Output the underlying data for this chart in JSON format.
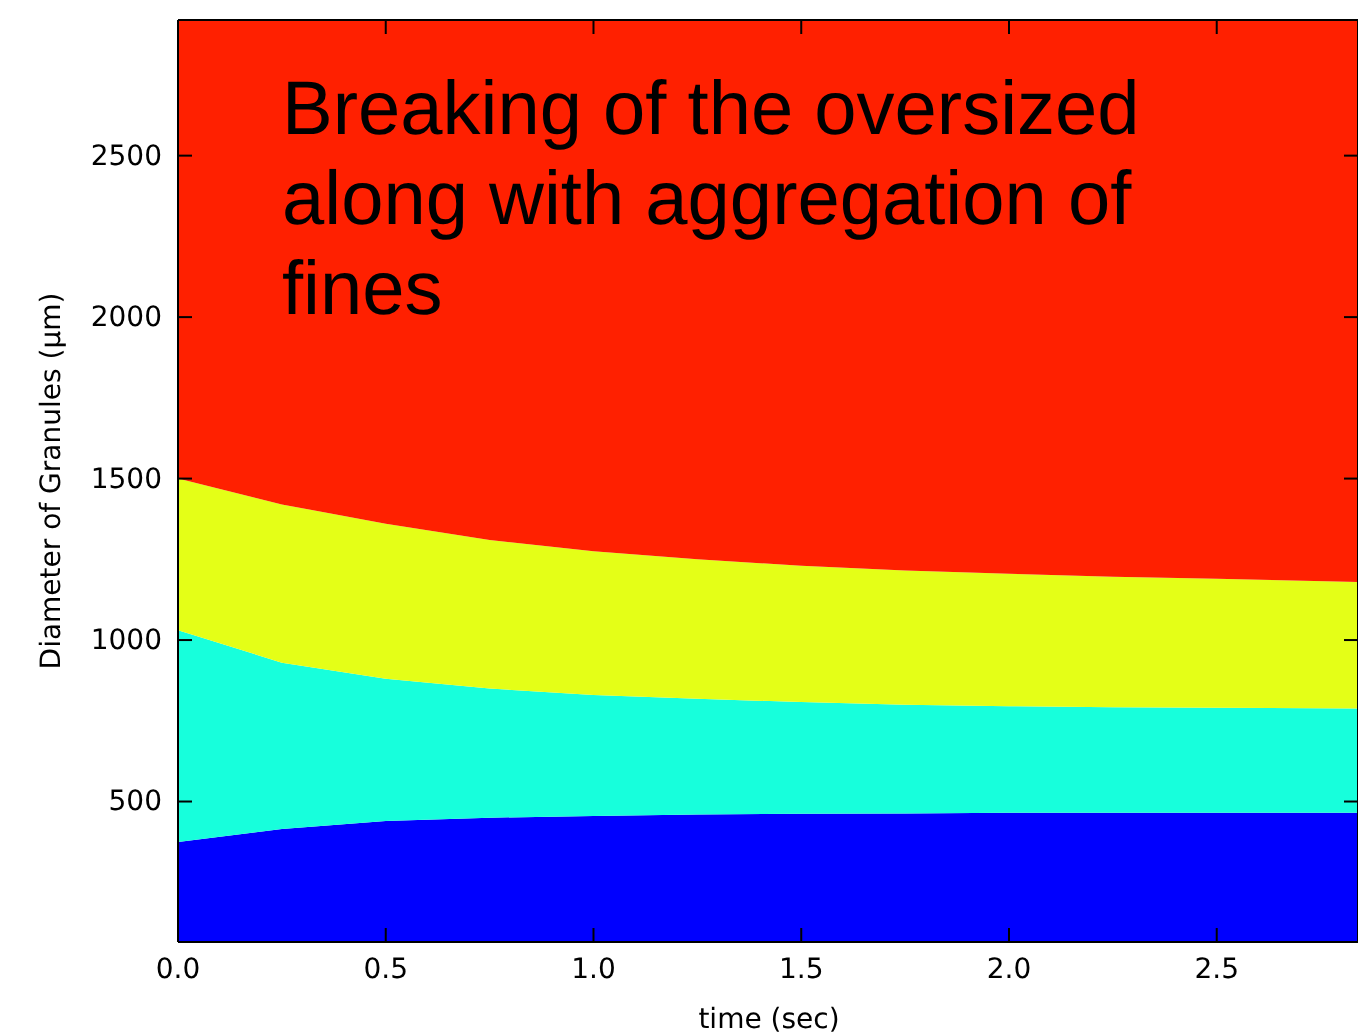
{
  "chart_data": {
    "type": "area",
    "xlabel": "time (sec)",
    "ylabel": "Diameter of Granules (μm)",
    "annotations": [
      "Breaking of the oversized along with aggregation of fines"
    ],
    "x": [
      0,
      0.25,
      0.5,
      0.75,
      1,
      1.25,
      1.5,
      1.75,
      2,
      2.25,
      2.5,
      2.84
    ],
    "series": [
      {
        "color": "#0000ff",
        "values": [
          375,
          415,
          440,
          450,
          455,
          460,
          462,
          463,
          465,
          465,
          465,
          465
        ]
      },
      {
        "color": "#17ffdc",
        "values": [
          655,
          515,
          440,
          400,
          375,
          358,
          346,
          337,
          330,
          327,
          325,
          323
        ]
      },
      {
        "color": "#e4ff17",
        "values": [
          470,
          490,
          480,
          460,
          445,
          432,
          422,
          415,
          410,
          404,
          400,
          392
        ]
      },
      {
        "color": "#ff2000",
        "values": [
          1420,
          1500,
          1560,
          1610,
          1645,
          1670,
          1690,
          1705,
          1715,
          1724,
          1730,
          1740
        ]
      }
    ],
    "stacked": true,
    "xlim": [
      0,
      2.84
    ],
    "ylim": [
      65,
      2920
    ],
    "xticks": [
      {
        "value": 0,
        "label": "0.0"
      },
      {
        "value": 0.5,
        "label": "0.5"
      },
      {
        "value": 1,
        "label": "1.0"
      },
      {
        "value": 1.5,
        "label": "1.5"
      },
      {
        "value": 2,
        "label": "2.0"
      },
      {
        "value": 2.5,
        "label": "2.5"
      }
    ],
    "yticks": [
      500,
      1000,
      1500,
      2000,
      2500
    ],
    "grid": false
  }
}
